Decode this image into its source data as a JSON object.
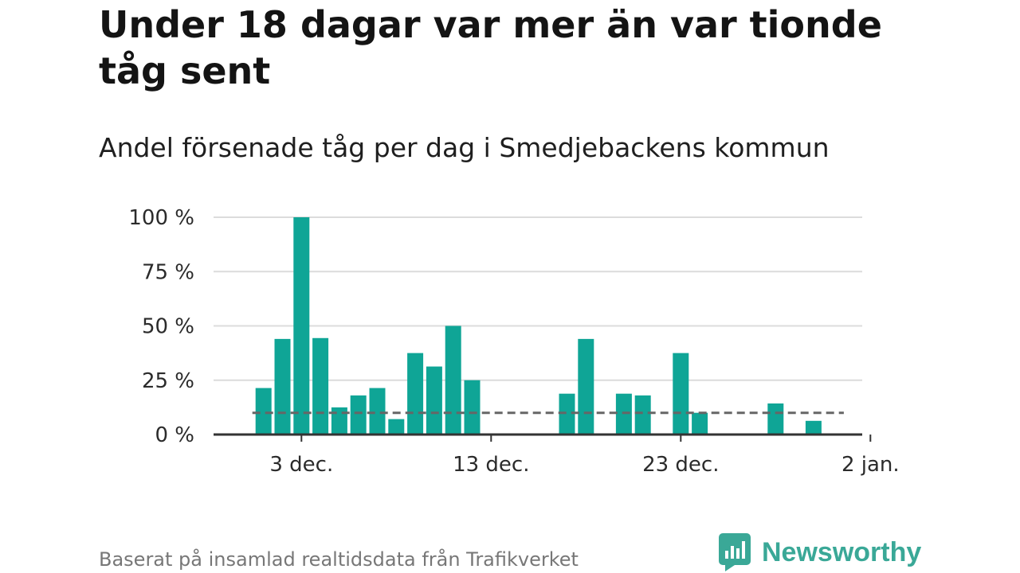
{
  "header": {
    "title": "Under 18 dagar var mer än var tionde tåg sent",
    "subtitle": "Andel försenade tåg per dag i Smedjebackens kommun"
  },
  "footer": {
    "source": "Baserat på insamlad realtidsdata från Trafikverket",
    "brand": "Newsworthy",
    "brand_color": "#3aa897"
  },
  "chart_data": {
    "type": "bar",
    "x_unit": "day",
    "x_start": "2023-11-30",
    "y_unit": "%",
    "ylim": [
      0,
      100
    ],
    "y_ticks": [
      0,
      25,
      50,
      75,
      100
    ],
    "y_tick_labels": [
      "0 %",
      "25 %",
      "50 %",
      "75 %",
      "100 %"
    ],
    "x_ticks": [
      "3 dec.",
      "13 dec.",
      "23 dec.",
      "2 jan."
    ],
    "x_tick_dates": [
      "2023-12-03",
      "2023-12-13",
      "2023-12-23",
      "2024-01-02"
    ],
    "grid": true,
    "bar_color": "#0fa596",
    "reference_line": {
      "value": 10,
      "style": "dashed",
      "color": "#666666"
    },
    "series": [
      {
        "values": [
          {
            "x": "2023-12-01",
            "y": 21.4
          },
          {
            "x": "2023-12-02",
            "y": 44
          },
          {
            "x": "2023-12-03",
            "y": 100
          },
          {
            "x": "2023-12-04",
            "y": 44.4
          },
          {
            "x": "2023-12-05",
            "y": 12.5
          },
          {
            "x": "2023-12-06",
            "y": 18
          },
          {
            "x": "2023-12-07",
            "y": 21.4
          },
          {
            "x": "2023-12-08",
            "y": 7.1
          },
          {
            "x": "2023-12-09",
            "y": 37.5
          },
          {
            "x": "2023-12-10",
            "y": 31.3
          },
          {
            "x": "2023-12-11",
            "y": 50
          },
          {
            "x": "2023-12-12",
            "y": 25
          },
          {
            "x": "2023-12-13",
            "y": 0
          },
          {
            "x": "2023-12-14",
            "y": 0
          },
          {
            "x": "2023-12-15",
            "y": 0
          },
          {
            "x": "2023-12-16",
            "y": 0
          },
          {
            "x": "2023-12-17",
            "y": 18.8
          },
          {
            "x": "2023-12-18",
            "y": 44
          },
          {
            "x": "2023-12-19",
            "y": 0
          },
          {
            "x": "2023-12-20",
            "y": 18.8
          },
          {
            "x": "2023-12-21",
            "y": 18
          },
          {
            "x": "2023-12-22",
            "y": 0
          },
          {
            "x": "2023-12-23",
            "y": 37.5
          },
          {
            "x": "2023-12-24",
            "y": 10
          },
          {
            "x": "2023-12-25",
            "y": 0
          },
          {
            "x": "2023-12-26",
            "y": 0
          },
          {
            "x": "2023-12-27",
            "y": 0
          },
          {
            "x": "2023-12-28",
            "y": 14.3
          },
          {
            "x": "2023-12-29",
            "y": 0
          },
          {
            "x": "2023-12-30",
            "y": 6.3
          }
        ]
      }
    ]
  }
}
